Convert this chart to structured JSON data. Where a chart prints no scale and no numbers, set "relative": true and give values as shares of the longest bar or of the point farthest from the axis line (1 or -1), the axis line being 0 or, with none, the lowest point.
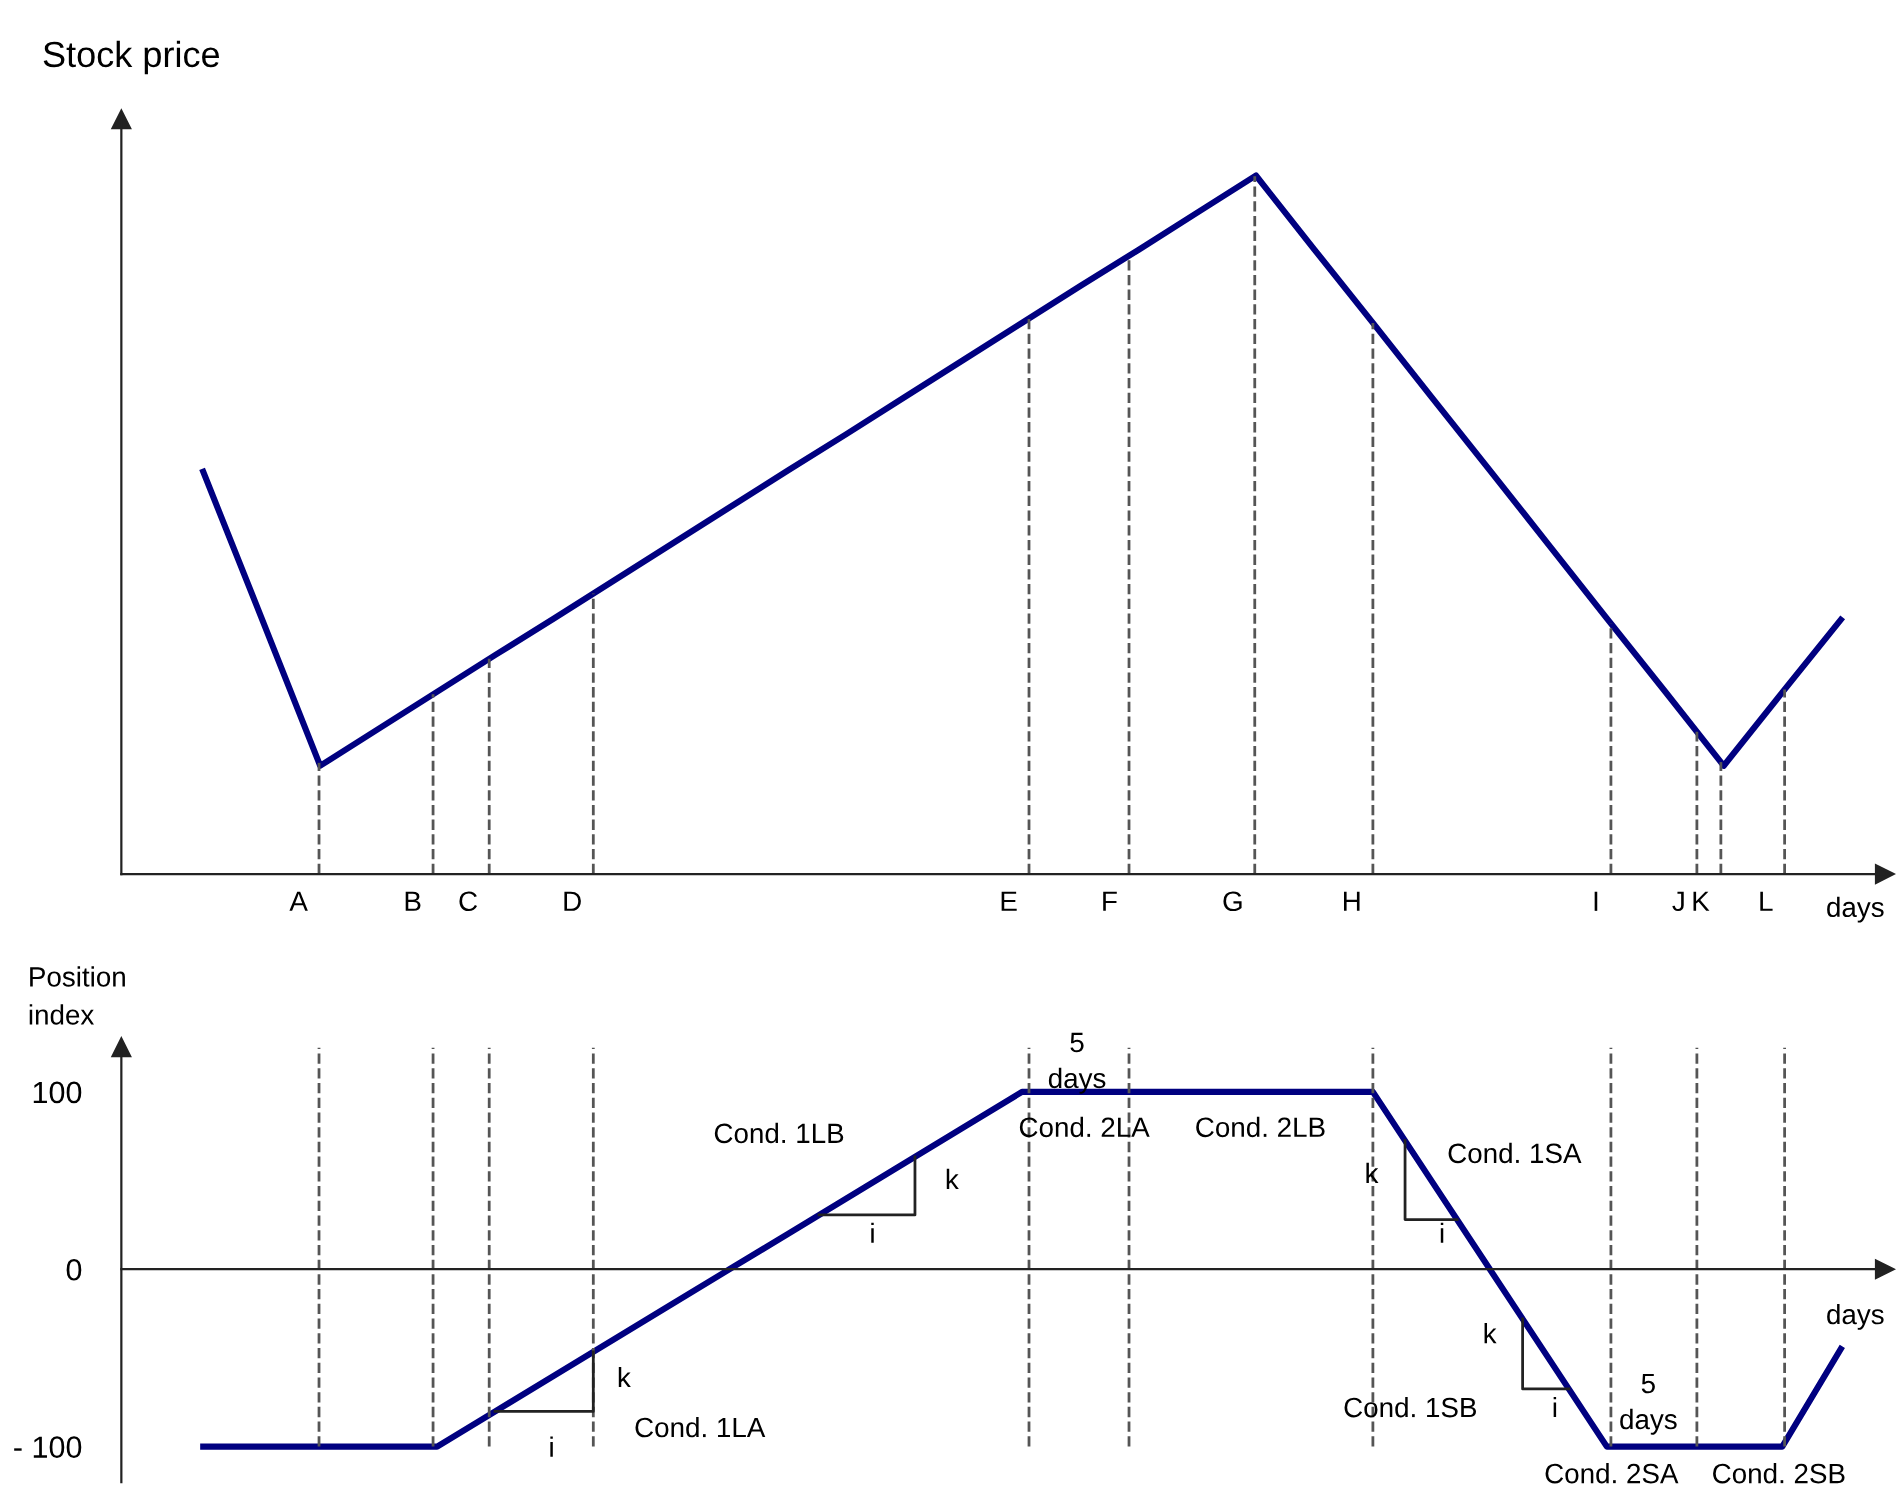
{
  "chart_data": [
    {
      "type": "line",
      "relative": true,
      "ylabel": "Stock price",
      "xlabel": "days",
      "categories": [
        null,
        null,
        null,
        null,
        null,
        null,
        null,
        null,
        null,
        null,
        null,
        null,
        null,
        null,
        null,
        null,
        null,
        null,
        null,
        null,
        null,
        null,
        null,
        null,
        null,
        null,
        null,
        null,
        null
      ],
      "series": [
        {
          "color": "#000080",
          "values": [
            0.576,
            0.366,
            0.155,
            0.208,
            0.261,
            0.314,
            0.366,
            0.419,
            0.472,
            0.525,
            0.578,
            0.63,
            0.683,
            0.736,
            0.789,
            0.842,
            0.894,
            0.947,
            1,
            0.894,
            0.789,
            0.683,
            0.578,
            0.472,
            0.366,
            0.261,
            0.155,
            0.26,
            0.364
          ]
        }
      ],
      "tick_labels": false,
      "grid": false,
      "legend": false,
      "marker": "none",
      "line_style": "solid",
      "annotations": [
        "A",
        "B",
        "C",
        "D",
        "E",
        "F",
        "G",
        "H",
        "I",
        "J",
        "K",
        "L"
      ]
    },
    {
      "type": "line",
      "ylabel": "Position\nindex",
      "xlabel": "days",
      "categories": [
        null,
        null,
        null,
        null,
        null,
        null,
        null,
        null,
        null,
        null,
        null,
        null,
        null,
        null,
        null,
        null,
        null,
        null,
        null,
        null,
        null,
        null,
        null,
        null,
        null,
        null,
        null,
        null,
        null
      ],
      "series": [
        {
          "color": "#000080",
          "values": [
            -100,
            -100,
            -100,
            -100,
            -100,
            -80,
            -60,
            -40,
            -20,
            0,
            20,
            40,
            60,
            80,
            100,
            100,
            100,
            100,
            100,
            100,
            100,
            50,
            0,
            -50,
            -100,
            -100,
            -100,
            -100,
            -45
          ]
        }
      ],
      "ylim": [
        -120,
        125
      ],
      "yticks": [
        {
          "value": -100,
          "label": "- 100"
        },
        0,
        100
      ],
      "tick_labels": "y",
      "grid": "x",
      "legend": false,
      "marker": "none",
      "line_style": "solid",
      "annotations": [
        "Cond. 1LA",
        "Cond. 1LB",
        "Cond. 2LA",
        "Cond. 2LB",
        "Cond. 1SA",
        "Cond. 1SB",
        "Cond. 2SA",
        "Cond. 2SB",
        "5\ndays",
        "5\ndays",
        "k",
        "i",
        "k",
        "i",
        "k",
        "i",
        "k",
        "i"
      ]
    }
  ]
}
